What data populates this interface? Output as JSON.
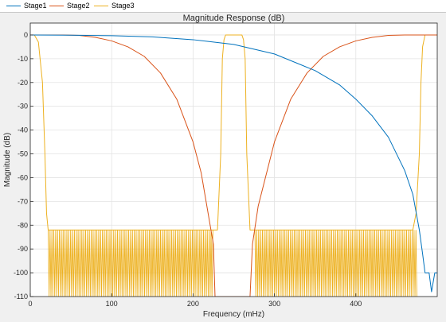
{
  "legend": [
    {
      "name": "Stage1",
      "color": "#0072BD"
    },
    {
      "name": "Stage2",
      "color": "#D95319"
    },
    {
      "name": "Stage3",
      "color": "#EDB120"
    }
  ],
  "chart_data": {
    "type": "line",
    "title": "Magnitude Response (dB)",
    "xlabel": "Frequency (mHz)",
    "ylabel": "Magnitude (dB)",
    "xlim": [
      0,
      500
    ],
    "ylim": [
      -110,
      5
    ],
    "xticks": [
      0,
      100,
      200,
      300,
      400
    ],
    "yticks": [
      0,
      -10,
      -20,
      -30,
      -40,
      -50,
      -60,
      -70,
      -80,
      -90,
      -100,
      -110
    ],
    "grid": true,
    "legend_position": "top",
    "series": [
      {
        "name": "Stage1",
        "color": "#0072BD",
        "x": [
          0,
          50,
          100,
          150,
          200,
          250,
          300,
          350,
          380,
          400,
          420,
          440,
          460,
          470,
          478,
          482,
          485,
          490,
          493,
          497,
          500
        ],
        "y": [
          0,
          -0.1,
          -0.3,
          -0.8,
          -2,
          -4,
          -8,
          -15,
          -21,
          -27,
          -34,
          -43,
          -57,
          -67,
          -82,
          -92,
          -100,
          -100,
          -108,
          -100,
          -100
        ]
      },
      {
        "name": "Stage2",
        "color": "#D95319",
        "x": [
          0,
          40,
          60,
          80,
          100,
          120,
          140,
          160,
          180,
          200,
          210,
          220,
          225,
          227,
          270,
          273,
          280,
          300,
          320,
          340,
          360,
          380,
          400,
          420,
          440,
          460,
          500
        ],
        "y": [
          0,
          0,
          -0.2,
          -1,
          -2.5,
          -5,
          -9,
          -16,
          -27,
          -45,
          -58,
          -78,
          -88,
          -110,
          -110,
          -88,
          -72,
          -45,
          -27,
          -16,
          -9,
          -5,
          -2.5,
          -1,
          -0.2,
          0,
          0
        ]
      },
      {
        "name": "Stage3",
        "color": "#EDB120",
        "x": [
          0,
          5,
          10,
          15,
          18,
          20,
          22,
          230,
          234,
          236,
          238,
          240,
          245,
          255,
          260,
          262,
          264,
          266,
          270,
          470,
          474,
          478,
          480,
          482,
          485,
          490,
          495,
          500
        ],
        "y": [
          0,
          0,
          -3,
          -20,
          -50,
          -75,
          -82,
          -82,
          -50,
          -10,
          -2,
          0,
          0,
          0,
          0,
          -2,
          -10,
          -50,
          -82,
          -82,
          -75,
          -50,
          -20,
          -5,
          0,
          0,
          0,
          0
        ]
      }
    ],
    "stopband_ripple": {
      "series": "Stage3",
      "bands": [
        [
          22,
          225
        ],
        [
          276,
          476
        ]
      ],
      "top": -82,
      "bottom": -110
    }
  }
}
